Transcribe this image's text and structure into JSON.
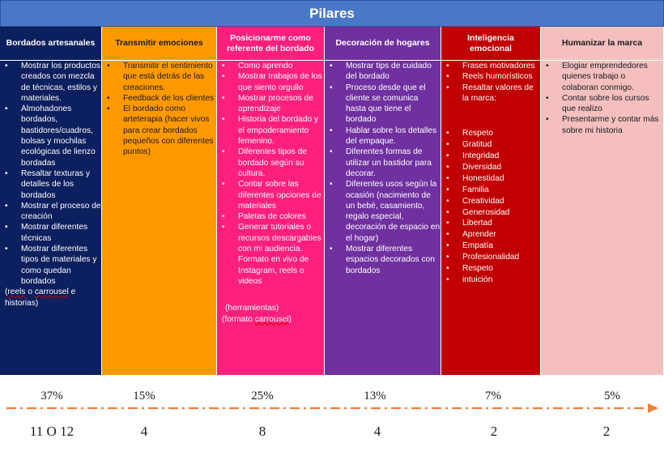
{
  "title": "Pilares",
  "colors": {
    "title": "#4a78c9",
    "c1": "#0c1f5e",
    "c2": "#ff9900",
    "c3": "#ff1f7d",
    "c4": "#7030a0",
    "c5": "#c00000",
    "c6": "#f4c0bf",
    "arrow": "#f07f3c"
  },
  "columns": [
    {
      "heading": "Bordados artesanales",
      "items": [
        "Mostrar los productos creados con mezcla de técnicas, estilos y materiales.",
        "Almohadones bordados, bastidores/cuadros, bolsas y mochilas ecológicas de lienzo bordadas",
        "Resaltar texturas y detalles de los bordados",
        "Mostrar el proceso de creación",
        "Mostrar diferentes técnicas",
        "Mostrar diferentes tipos de materiales y como quedan bordados"
      ],
      "note_a": "reels",
      "note_b": " o ",
      "note_c": "carrousel",
      "note_d": " e historias)"
    },
    {
      "heading": "Transmitir emociones",
      "items": [
        "Transmitir el sentimiento que está detrás de las creaciones.",
        "Feedback de los clientes",
        "El bordado como arteterapia (hacer vivos para crear bordados pequeños con diferentes puntos)"
      ]
    },
    {
      "heading": "Posicionarme como referente del bordado",
      "items": [
        "Como aprendo",
        "Mostrar trabajos de los que siento orgullo",
        "Mostrar procesos de aprendizaje",
        "Historia del bordado y el empoderamiento femenino.",
        "Diferentes tipos de bordado según su cultura.",
        "Contar sobre las diferentes opciones de materiales",
        "Paletas de colores",
        "Generar tutoriales o recursos descargables con mi audiencia. Formato en vivo de Instagram, reels o videos"
      ],
      "note1": "(herramientas)",
      "note2a": "(formato ",
      "note2b": "carrousel",
      "note2c": ")"
    },
    {
      "heading": "Decoración de hogares",
      "items": [
        "Mostrar tips de cuidado del bordado",
        "Proceso desde que el cliente se comunica hasta que tiene el bordado",
        "Hablar sobre los detalles del empaque.",
        "Diferentes formas de utilizar un bastidor para decorar.",
        "Diferentes usos según la ocasión (nacimiento de un bebé, casamiento, regalo especial, decoración de espacio en el hogar)",
        "Mostrar diferentes espacios decorados con bordados"
      ]
    },
    {
      "heading": "Inteligencia emocional",
      "items": [
        "Frases motivadores",
        "Reels humorísticos",
        "Resaltar valores de la marca:"
      ],
      "values": [
        "Respeto",
        "Gratitud",
        "Integridad",
        "Diversidad",
        "Honestidad",
        "Familia",
        "Creatividad",
        "Generosidad",
        "Libertad",
        "Aprender",
        "Empatía",
        "Profesionalidad",
        "Respeto",
        "intuición"
      ]
    },
    {
      "heading": "Humanizar la marca",
      "items": [
        "Elogiar emprendedores quienes trabajo o colaboran conmigo.",
        "Contar sobre los cursos que realizo",
        "Presentarme y contar más sobre mi historia"
      ]
    }
  ],
  "percentages": [
    "37%",
    "15%",
    "25%",
    "13%",
    "7%",
    "5%"
  ],
  "counts": [
    "11 O 12",
    "4",
    "8",
    "4",
    "2",
    "2"
  ]
}
